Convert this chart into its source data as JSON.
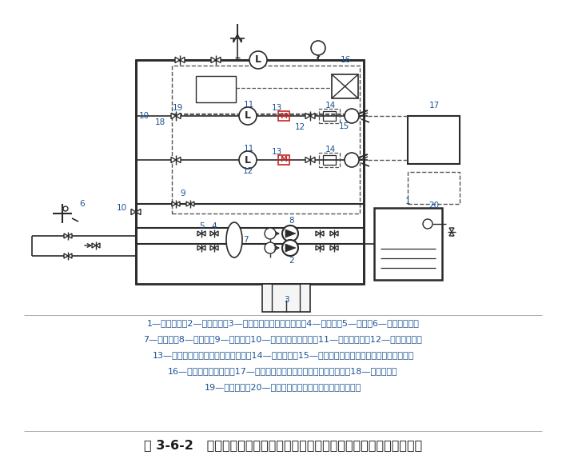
{
  "title": "图 3-6-2   自动消防炮灭火系统／喷射型自动射流灭火系统基本组成示意图",
  "caption_lines": [
    "1—消防水池；2—消防水泵；3—消防水泵／稳压泵控制柜；4—止回阀；5—闸阀；6—水泵接合器；",
    "7—气压罐；8—稳压泵；9—泄压阀；10—检修阀（信号阀）；11—水流指示器；12—控制模块箱；",
    "13—自动控制阀（电磁阀或电动阀）；14—探测装置；15—自动消防炮／喷射型自动射流灭火装置；",
    "16—模拟末端试水装置；17—控制装置（控制主机、现场控制箱等）；18—供水管网；",
    "19—供水支管；20—联动控制器（或自动报警系统主机）。"
  ],
  "bg_color": "#ffffff",
  "line_color": "#2b2b2b",
  "label_color": "#1a5296",
  "title_color": "#1a1a1a",
  "caption_color": "#1a5296",
  "dashed_color": "#555555",
  "M_box_color": "#cc2222",
  "figsize": [
    7.08,
    5.79
  ],
  "dpi": 100
}
